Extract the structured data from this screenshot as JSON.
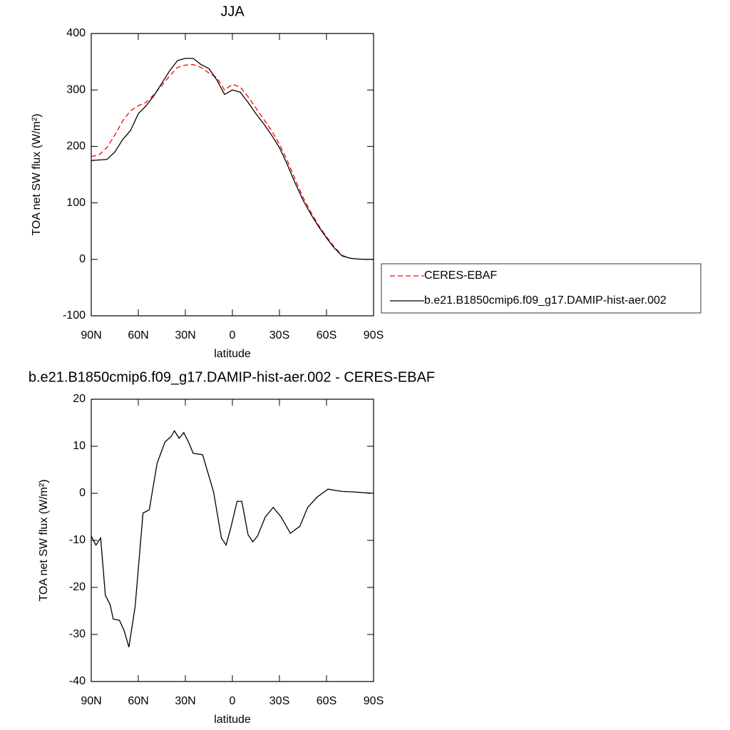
{
  "chart_data": [
    {
      "type": "line",
      "title": "JJA",
      "xlabel": "latitude",
      "ylabel": "TOA net SW flux (W/m²)",
      "x": [
        90,
        85,
        80,
        75,
        70,
        65,
        60,
        55,
        50,
        45,
        40,
        35,
        30,
        25,
        20,
        15,
        10,
        5,
        0,
        -5,
        -10,
        -15,
        -20,
        -25,
        -30,
        -35,
        -40,
        -45,
        -50,
        -55,
        -60,
        -65,
        -70,
        -75,
        -80,
        -85,
        -90
      ],
      "series": [
        {
          "name": "CERES-EBAF",
          "color": "#ff0000",
          "dash": "dashed",
          "values": [
            182,
            185,
            198,
            220,
            245,
            263,
            272,
            278,
            292,
            308,
            325,
            340,
            344,
            345,
            340,
            330,
            322,
            300,
            310,
            305,
            288,
            268,
            248,
            228,
            204,
            175,
            142,
            110,
            84,
            60,
            40,
            22,
            7,
            2,
            0.5,
            0,
            0
          ]
        },
        {
          "name": "b.e21.B1850cmip6.f09_g17.DAMIP-hist-aer.002",
          "color": "#000000",
          "dash": "solid",
          "values": [
            175,
            176,
            177,
            190,
            212,
            228,
            258,
            272,
            290,
            312,
            334,
            352,
            356,
            356,
            345,
            338,
            318,
            292,
            300,
            296,
            278,
            258,
            240,
            220,
            198,
            168,
            135,
            105,
            80,
            58,
            38,
            20,
            6,
            2,
            0.5,
            0,
            0
          ]
        }
      ],
      "xlim": [
        90,
        -90
      ],
      "xticks": [
        {
          "value": 90,
          "label": "90N"
        },
        {
          "value": 60,
          "label": "60N"
        },
        {
          "value": 30,
          "label": "30N"
        },
        0,
        {
          "value": -30,
          "label": "30S"
        },
        {
          "value": -60,
          "label": "60S"
        },
        {
          "value": -90,
          "label": "90S"
        }
      ],
      "ylim": [
        -100,
        400
      ],
      "yticks": [
        -100,
        0,
        100,
        200,
        300,
        400
      ],
      "legend": "right"
    },
    {
      "type": "line",
      "title": "b.e21.B1850cmip6.f09_g17.DAMIP-hist-aer.002 - CERES-EBAF",
      "xlabel": "latitude",
      "ylabel": "TOA net SW flux (W/m²)",
      "x": [
        90,
        87,
        84,
        81,
        78,
        76,
        72,
        69,
        66,
        62,
        57,
        53,
        48,
        43,
        39,
        37,
        34,
        31,
        28,
        25,
        19,
        12,
        7,
        4,
        1,
        -3,
        -6,
        -10,
        -13,
        -16,
        -21,
        -26,
        -31,
        -37,
        -43,
        -48,
        -54,
        -61,
        -66,
        -70,
        -77,
        -81,
        -90
      ],
      "series": [
        {
          "name": "b.e21.B1850cmip6.f09_g17.DAMIP-hist-aer.002 - CERES-EBAF",
          "color": "#000000",
          "dash": "solid",
          "values": [
            -9.1,
            -11,
            -9.5,
            -21.7,
            -23.6,
            -26.7,
            -27,
            -29.2,
            -32.7,
            -24,
            -4.2,
            -3.5,
            6.4,
            10.9,
            12.1,
            13.3,
            11.7,
            12.9,
            10.9,
            8.5,
            8.2,
            0.3,
            -9.5,
            -11,
            -7.3,
            -1.7,
            -1.7,
            -8.8,
            -10.3,
            -9.1,
            -5,
            -3,
            -5,
            -8.5,
            -7,
            -3,
            -0.8,
            0.9,
            0.6,
            0.4,
            0.3,
            0.2,
            0
          ]
        }
      ],
      "xlim": [
        90,
        -90
      ],
      "xticks": [
        {
          "value": 90,
          "label": "90N"
        },
        {
          "value": 60,
          "label": "60N"
        },
        {
          "value": 30,
          "label": "30N"
        },
        0,
        {
          "value": -30,
          "label": "30S"
        },
        {
          "value": -60,
          "label": "60S"
        },
        {
          "value": -90,
          "label": "90S"
        }
      ],
      "ylim": [
        -40,
        20
      ],
      "yticks": [
        -40,
        -30,
        -20,
        -10,
        0,
        10,
        20
      ]
    }
  ]
}
